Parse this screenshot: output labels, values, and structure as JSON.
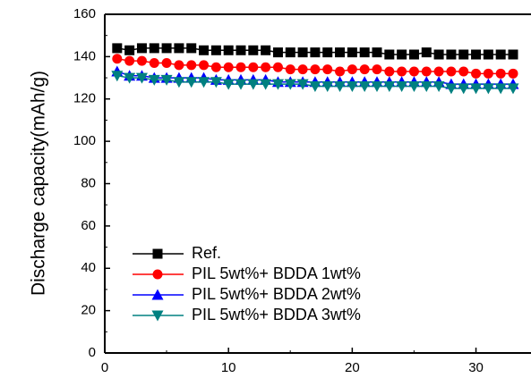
{
  "chart_data": {
    "type": "line",
    "y_label": "Discharge capacity(mAh/g)",
    "x": [
      1,
      2,
      3,
      4,
      5,
      6,
      7,
      8,
      9,
      10,
      11,
      12,
      13,
      14,
      15,
      16,
      17,
      18,
      19,
      20,
      21,
      22,
      23,
      24,
      25,
      26,
      27,
      28,
      29,
      30,
      31,
      32,
      33
    ],
    "series": [
      {
        "name": "Ref.",
        "color": "#000000",
        "marker": "square",
        "values": [
          144,
          143,
          144,
          144,
          144,
          144,
          144,
          143,
          143,
          143,
          143,
          143,
          143,
          142,
          142,
          142,
          142,
          142,
          142,
          142,
          142,
          142,
          141,
          141,
          141,
          142,
          141,
          141,
          141,
          141,
          141,
          141,
          141
        ]
      },
      {
        "name": "PIL 5wt%+ BDDA 1wt%",
        "color": "#ff0000",
        "marker": "circle",
        "values": [
          139,
          138,
          138,
          137,
          137,
          136,
          136,
          136,
          135,
          135,
          135,
          135,
          135,
          135,
          134,
          134,
          134,
          134,
          133,
          134,
          134,
          134,
          133,
          133,
          133,
          133,
          133,
          133,
          133,
          132,
          132,
          132,
          132
        ]
      },
      {
        "name": "PIL 5wt%+ BDDA 2wt%",
        "color": "#0000ff",
        "marker": "triangle-up",
        "values": [
          133,
          131,
          131,
          130,
          130,
          130,
          130,
          130,
          129,
          129,
          129,
          129,
          129,
          128,
          128,
          128,
          128,
          128,
          128,
          128,
          128,
          128,
          128,
          128,
          128,
          128,
          128,
          127,
          127,
          127,
          127,
          127,
          127
        ]
      },
      {
        "name": "PIL 5wt%+ BDDA 3wt%",
        "color": "#008080",
        "marker": "triangle-down",
        "values": [
          131,
          130,
          130,
          129,
          129,
          128,
          128,
          128,
          128,
          127,
          127,
          127,
          127,
          127,
          127,
          127,
          126,
          126,
          126,
          126,
          126,
          126,
          126,
          126,
          126,
          126,
          126,
          125,
          125,
          125,
          125,
          125,
          125
        ]
      }
    ],
    "xlim": [
      0,
      33
    ],
    "xticks": [
      0,
      10,
      20,
      30
    ],
    "ylim": [
      0,
      160
    ],
    "yticks": [
      0,
      20,
      40,
      60,
      80,
      100,
      120,
      140,
      160
    ]
  }
}
